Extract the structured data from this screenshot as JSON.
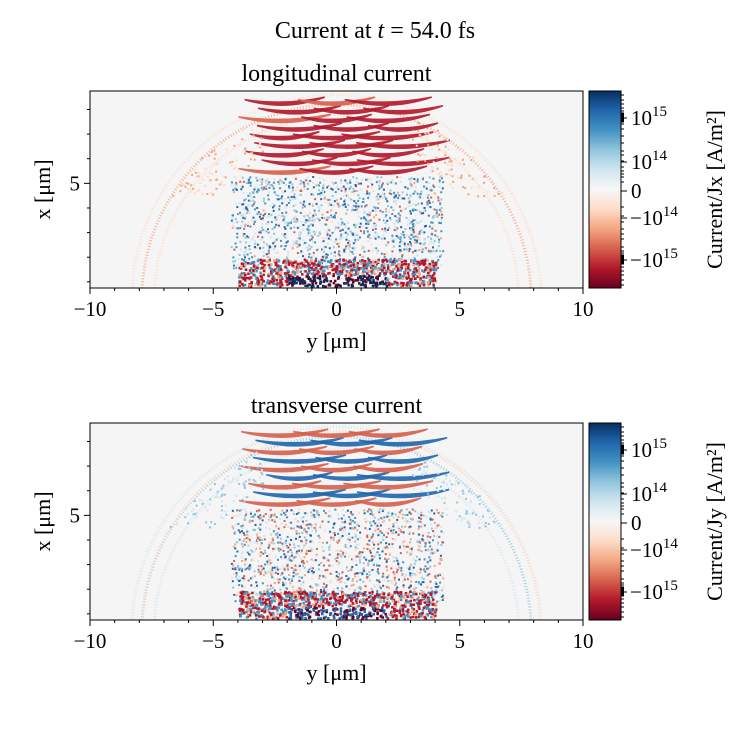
{
  "figure_title": {
    "prefix": "Current at ",
    "var": "t",
    "suffix": " = 54.0 fs"
  },
  "chart_data": [
    {
      "type": "heatmap",
      "title": "longitudinal current",
      "xlabel": "y [μm]",
      "ylabel": "x [μm]",
      "xlim": [
        -10,
        10
      ],
      "ylim": [
        0.75,
        8.75
      ],
      "xticks": [
        "−10",
        "−5",
        "0",
        "5",
        "10"
      ],
      "yticks": [
        "5"
      ],
      "colormap": "RdBu",
      "colorbar": {
        "label": "Current/Jx [A/m²]",
        "scale": "symlog",
        "ticks": [
          {
            "sign": "",
            "base": "10",
            "exp": "15",
            "value": 1000000000000000.0
          },
          {
            "sign": "",
            "base": "10",
            "exp": "14",
            "value": 100000000000000.0
          },
          {
            "sign": "",
            "base": "0",
            "exp": "",
            "value": 0
          },
          {
            "sign": "−",
            "base": "10",
            "exp": "14",
            "value": -100000000000000.0
          },
          {
            "sign": "−",
            "base": "10",
            "exp": "15",
            "value": -1000000000000000.0
          }
        ]
      }
    },
    {
      "type": "heatmap",
      "title": "transverse current",
      "xlabel": "y [μm]",
      "ylabel": "x [μm]",
      "xlim": [
        -10,
        10
      ],
      "ylim": [
        0.75,
        8.75
      ],
      "xticks": [
        "−10",
        "−5",
        "0",
        "5",
        "10"
      ],
      "yticks": [
        "5"
      ],
      "colormap": "RdBu",
      "colorbar": {
        "label": "Current/Jy [A/m²]",
        "scale": "symlog",
        "ticks": [
          {
            "sign": "",
            "base": "10",
            "exp": "15",
            "value": 1000000000000000.0
          },
          {
            "sign": "",
            "base": "10",
            "exp": "14",
            "value": 100000000000000.0
          },
          {
            "sign": "",
            "base": "0",
            "exp": "",
            "value": 0
          },
          {
            "sign": "−",
            "base": "10",
            "exp": "14",
            "value": -100000000000000.0
          },
          {
            "sign": "−",
            "base": "10",
            "exp": "15",
            "value": -1000000000000000.0
          }
        ]
      }
    }
  ],
  "colors": {
    "cmap": [
      "#053061",
      "#2166ac",
      "#4393c3",
      "#92c5de",
      "#d1e5f0",
      "#f7f7f7",
      "#fddbc7",
      "#f4a582",
      "#d6604d",
      "#b2182b",
      "#67001f"
    ],
    "background": "#f5f5f5"
  }
}
